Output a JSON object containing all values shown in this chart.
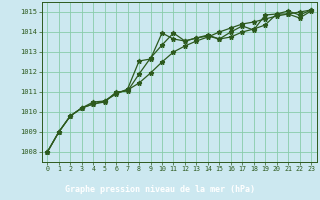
{
  "title": "Graphe pression niveau de la mer (hPa)",
  "background_color": "#b8e8d8",
  "plot_bg_color": "#cce8f0",
  "line_color": "#2d5a1e",
  "marker_color": "#2d5a1e",
  "xlabel_bg": "#4a7a4a",
  "xlim": [
    -0.5,
    23.5
  ],
  "ylim": [
    1007.5,
    1015.5
  ],
  "yticks": [
    1008,
    1009,
    1010,
    1011,
    1012,
    1013,
    1014,
    1015
  ],
  "xticks": [
    0,
    1,
    2,
    3,
    4,
    5,
    6,
    7,
    8,
    9,
    10,
    11,
    12,
    13,
    14,
    15,
    16,
    17,
    18,
    19,
    20,
    21,
    22,
    23
  ],
  "series1_x": [
    0,
    1,
    2,
    3,
    4,
    5,
    6,
    7,
    8,
    9,
    10,
    11,
    12,
    13,
    14,
    15,
    16,
    17,
    18,
    19,
    20,
    21,
    22,
    23
  ],
  "series1_y": [
    1008.0,
    1009.0,
    1009.8,
    1010.2,
    1010.4,
    1010.5,
    1011.0,
    1011.05,
    1011.9,
    1012.7,
    1013.35,
    1013.95,
    1013.55,
    1013.7,
    1013.8,
    1013.65,
    1013.75,
    1014.0,
    1014.15,
    1014.35,
    1014.9,
    1014.9,
    1014.7,
    1015.05
  ],
  "series2_x": [
    0,
    1,
    2,
    3,
    4,
    5,
    6,
    7,
    8,
    9,
    10,
    11,
    12,
    13,
    14,
    15,
    16,
    17,
    18,
    19,
    20,
    21,
    22,
    23
  ],
  "series2_y": [
    1008.0,
    1009.0,
    1009.8,
    1010.2,
    1010.5,
    1010.55,
    1010.9,
    1011.15,
    1012.55,
    1012.65,
    1013.95,
    1013.65,
    1013.55,
    1013.7,
    1013.85,
    1013.65,
    1014.0,
    1014.3,
    1014.1,
    1014.85,
    1014.9,
    1015.05,
    1014.85,
    1015.1
  ],
  "series3_x": [
    0,
    1,
    2,
    3,
    4,
    5,
    6,
    7,
    8,
    9,
    10,
    11,
    12,
    13,
    14,
    15,
    16,
    17,
    18,
    19,
    20,
    21,
    22,
    23
  ],
  "series3_y": [
    1008.0,
    1009.0,
    1009.8,
    1010.2,
    1010.4,
    1010.55,
    1010.95,
    1011.1,
    1011.45,
    1011.95,
    1012.5,
    1013.0,
    1013.3,
    1013.55,
    1013.75,
    1014.0,
    1014.2,
    1014.4,
    1014.5,
    1014.65,
    1014.8,
    1014.9,
    1015.0,
    1015.1
  ]
}
